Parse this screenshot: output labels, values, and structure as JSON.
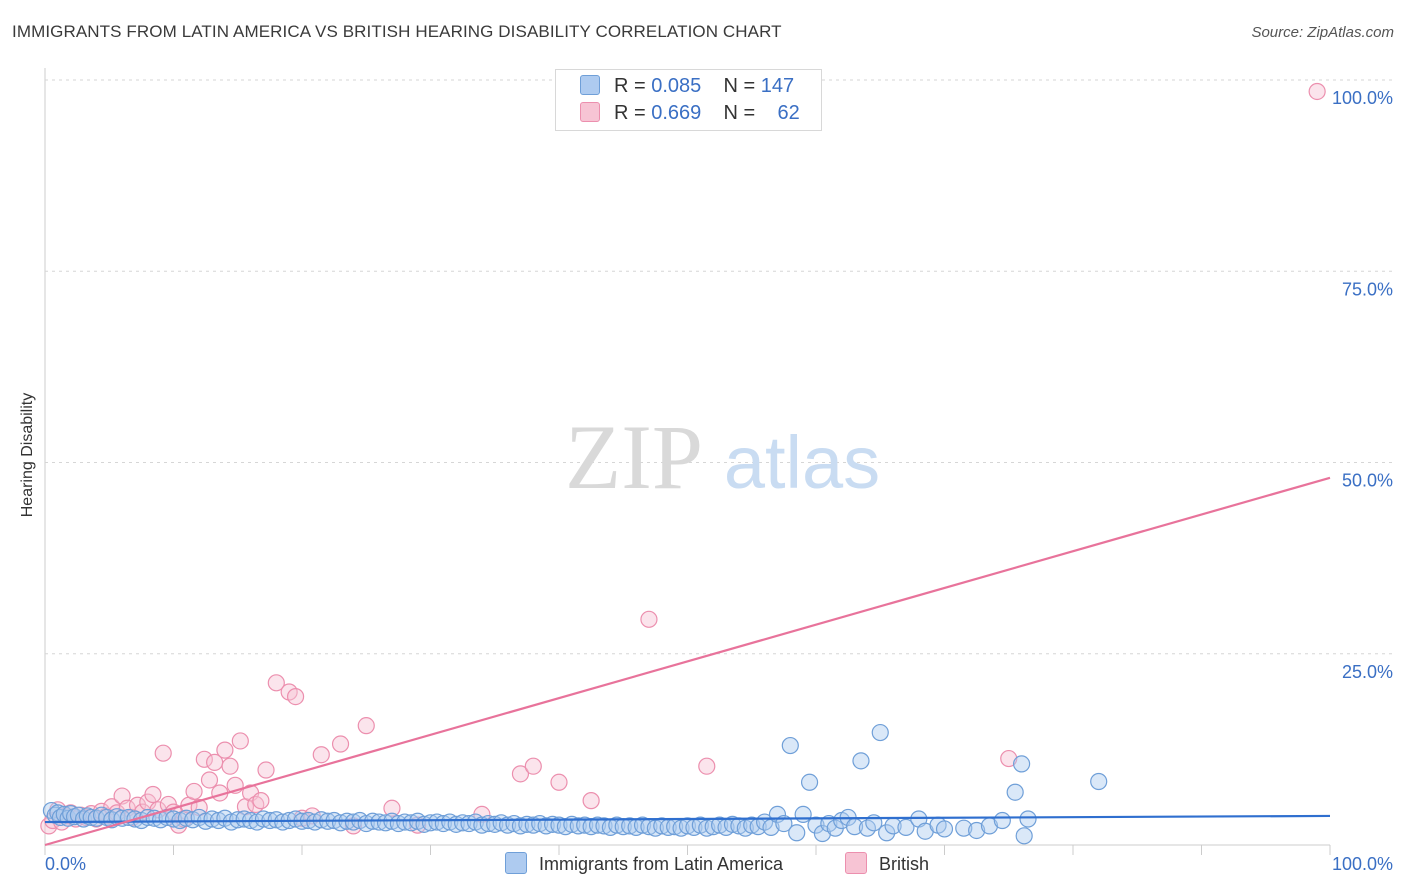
{
  "header": {
    "title": "IMMIGRANTS FROM LATIN AMERICA VS BRITISH HEARING DISABILITY CORRELATION CHART",
    "source": "Source: ZipAtlas.com"
  },
  "watermark": {
    "zip": "ZIP",
    "atlas": "atlas"
  },
  "legend_top": {
    "rows": [
      {
        "r_label": "R = ",
        "r_value": "0.085",
        "n_label": "N = ",
        "n_value": "147"
      },
      {
        "r_label": "R = ",
        "r_value": "0.669",
        "n_label": "N = ",
        "n_value": "62"
      }
    ]
  },
  "legend_bottom": {
    "items": [
      {
        "label": "Immigrants from Latin America"
      },
      {
        "label": "British"
      }
    ]
  },
  "colors": {
    "blue_fill": "#aecbf0",
    "blue_stroke": "#6f9fd8",
    "blue_line": "#2f6fcf",
    "pink_fill": "#f7c4d4",
    "pink_stroke": "#ec8fae",
    "pink_line": "#e8739b",
    "tick_text": "#3a6fc4",
    "grid": "#d6d6d6"
  },
  "chart_data": {
    "type": "scatter",
    "title": "IMMIGRANTS FROM LATIN AMERICA VS BRITISH HEARING DISABILITY CORRELATION CHART",
    "xlabel": "",
    "ylabel": "Hearing Disability",
    "xlim": [
      0,
      100
    ],
    "ylim": [
      0,
      100
    ],
    "x_tick_labels": [
      "0.0%",
      "100.0%"
    ],
    "y_ticks": [
      25,
      50,
      75,
      100
    ],
    "y_tick_labels": [
      "25.0%",
      "50.0%",
      "75.0%",
      "100.0%"
    ],
    "series": [
      {
        "name": "Immigrants from Latin America",
        "R": 0.085,
        "N": 147,
        "trend": {
          "x": [
            0,
            100
          ],
          "y": [
            3.0,
            3.8
          ]
        },
        "points": [
          [
            0.5,
            4.5
          ],
          [
            0.8,
            3.9
          ],
          [
            1.0,
            4.2
          ],
          [
            1.2,
            3.6
          ],
          [
            1.5,
            4.0
          ],
          [
            1.8,
            3.5
          ],
          [
            2.0,
            4.1
          ],
          [
            2.3,
            3.7
          ],
          [
            2.6,
            3.9
          ],
          [
            3.0,
            3.4
          ],
          [
            3.3,
            3.8
          ],
          [
            3.6,
            3.6
          ],
          [
            4.0,
            3.5
          ],
          [
            4.4,
            3.9
          ],
          [
            4.8,
            3.6
          ],
          [
            5.2,
            3.3
          ],
          [
            5.6,
            3.7
          ],
          [
            6.0,
            3.5
          ],
          [
            6.5,
            3.6
          ],
          [
            7.0,
            3.4
          ],
          [
            7.5,
            3.2
          ],
          [
            8.0,
            3.6
          ],
          [
            8.5,
            3.5
          ],
          [
            9.0,
            3.3
          ],
          [
            9.5,
            3.6
          ],
          [
            10.0,
            3.4
          ],
          [
            10.5,
            3.2
          ],
          [
            11.0,
            3.5
          ],
          [
            11.5,
            3.3
          ],
          [
            12.0,
            3.6
          ],
          [
            12.5,
            3.1
          ],
          [
            13.0,
            3.4
          ],
          [
            13.5,
            3.2
          ],
          [
            14.0,
            3.5
          ],
          [
            14.5,
            3.0
          ],
          [
            15.0,
            3.3
          ],
          [
            15.5,
            3.4
          ],
          [
            16.0,
            3.2
          ],
          [
            16.5,
            3.0
          ],
          [
            17.0,
            3.4
          ],
          [
            17.5,
            3.2
          ],
          [
            18.0,
            3.3
          ],
          [
            18.5,
            3.0
          ],
          [
            19.0,
            3.2
          ],
          [
            19.5,
            3.4
          ],
          [
            20.0,
            3.1
          ],
          [
            20.5,
            3.2
          ],
          [
            21.0,
            3.0
          ],
          [
            21.5,
            3.3
          ],
          [
            22.0,
            3.1
          ],
          [
            22.5,
            3.2
          ],
          [
            23.0,
            2.9
          ],
          [
            23.5,
            3.1
          ],
          [
            24.0,
            3.0
          ],
          [
            24.5,
            3.2
          ],
          [
            25.0,
            2.8
          ],
          [
            25.5,
            3.1
          ],
          [
            26.0,
            3.0
          ],
          [
            26.5,
            2.9
          ],
          [
            27.0,
            3.1
          ],
          [
            27.5,
            2.8
          ],
          [
            28.0,
            3.0
          ],
          [
            28.5,
            2.9
          ],
          [
            29.0,
            3.1
          ],
          [
            29.5,
            2.7
          ],
          [
            30.0,
            2.9
          ],
          [
            30.5,
            3.0
          ],
          [
            31.0,
            2.8
          ],
          [
            31.5,
            3.0
          ],
          [
            32.0,
            2.7
          ],
          [
            32.5,
            2.9
          ],
          [
            33.0,
            2.8
          ],
          [
            33.5,
            3.0
          ],
          [
            34.0,
            2.6
          ],
          [
            34.5,
            2.8
          ],
          [
            35.0,
            2.7
          ],
          [
            35.5,
            2.9
          ],
          [
            36.0,
            2.6
          ],
          [
            36.5,
            2.8
          ],
          [
            37.0,
            2.5
          ],
          [
            37.5,
            2.7
          ],
          [
            38.0,
            2.6
          ],
          [
            38.5,
            2.8
          ],
          [
            39.0,
            2.5
          ],
          [
            39.5,
            2.7
          ],
          [
            40.0,
            2.6
          ],
          [
            40.5,
            2.4
          ],
          [
            41.0,
            2.7
          ],
          [
            41.5,
            2.5
          ],
          [
            42.0,
            2.6
          ],
          [
            42.5,
            2.4
          ],
          [
            43.0,
            2.6
          ],
          [
            43.5,
            2.5
          ],
          [
            44.0,
            2.3
          ],
          [
            44.5,
            2.6
          ],
          [
            45.0,
            2.4
          ],
          [
            45.5,
            2.5
          ],
          [
            46.0,
            2.3
          ],
          [
            46.5,
            2.6
          ],
          [
            47.0,
            2.4
          ],
          [
            47.5,
            2.2
          ],
          [
            48.0,
            2.5
          ],
          [
            48.5,
            2.3
          ],
          [
            49.0,
            2.4
          ],
          [
            49.5,
            2.2
          ],
          [
            50.0,
            2.5
          ],
          [
            50.5,
            2.3
          ],
          [
            51.0,
            2.6
          ],
          [
            51.5,
            2.2
          ],
          [
            52.0,
            2.4
          ],
          [
            52.5,
            2.6
          ],
          [
            53.0,
            2.3
          ],
          [
            53.5,
            2.7
          ],
          [
            54.0,
            2.5
          ],
          [
            54.5,
            2.2
          ],
          [
            55.0,
            2.6
          ],
          [
            55.5,
            2.4
          ],
          [
            56.0,
            3.0
          ],
          [
            56.5,
            2.3
          ],
          [
            57.0,
            4.0
          ],
          [
            57.5,
            2.8
          ],
          [
            58.0,
            13.0
          ],
          [
            58.5,
            1.6
          ],
          [
            59.0,
            4.0
          ],
          [
            59.5,
            8.2
          ],
          [
            60.0,
            2.6
          ],
          [
            60.5,
            1.5
          ],
          [
            61.0,
            2.8
          ],
          [
            61.5,
            2.2
          ],
          [
            62.0,
            3.2
          ],
          [
            62.5,
            3.6
          ],
          [
            63.0,
            2.4
          ],
          [
            63.5,
            11.0
          ],
          [
            64.0,
            2.2
          ],
          [
            64.5,
            2.9
          ],
          [
            65.0,
            14.7
          ],
          [
            65.5,
            1.6
          ],
          [
            66.0,
            2.5
          ],
          [
            67.0,
            2.3
          ],
          [
            68.0,
            3.4
          ],
          [
            68.5,
            1.8
          ],
          [
            69.5,
            2.6
          ],
          [
            70.0,
            2.1
          ],
          [
            71.5,
            2.2
          ],
          [
            72.5,
            1.9
          ],
          [
            73.5,
            2.5
          ],
          [
            74.5,
            3.2
          ],
          [
            75.5,
            6.9
          ],
          [
            76.0,
            10.6
          ],
          [
            76.5,
            3.4
          ],
          [
            76.2,
            1.2
          ],
          [
            82.0,
            8.3
          ]
        ]
      },
      {
        "name": "British",
        "R": 0.669,
        "N": 62,
        "trend": {
          "x": [
            0,
            100
          ],
          "y": [
            0,
            48
          ]
        },
        "points": [
          [
            0.3,
            2.5
          ],
          [
            0.6,
            3.2
          ],
          [
            1.0,
            4.6
          ],
          [
            1.3,
            3.0
          ],
          [
            1.6,
            3.8
          ],
          [
            2.0,
            4.2
          ],
          [
            2.4,
            3.4
          ],
          [
            2.8,
            3.9
          ],
          [
            3.2,
            3.6
          ],
          [
            3.6,
            4.1
          ],
          [
            4.0,
            3.4
          ],
          [
            4.4,
            4.4
          ],
          [
            4.8,
            3.8
          ],
          [
            5.2,
            5.0
          ],
          [
            5.6,
            4.2
          ],
          [
            6.0,
            6.4
          ],
          [
            6.4,
            4.8
          ],
          [
            6.8,
            3.6
          ],
          [
            7.2,
            5.2
          ],
          [
            7.6,
            4.3
          ],
          [
            8.0,
            5.6
          ],
          [
            8.4,
            6.6
          ],
          [
            8.8,
            4.6
          ],
          [
            9.2,
            12.0
          ],
          [
            9.6,
            5.3
          ],
          [
            10.0,
            4.3
          ],
          [
            10.4,
            2.6
          ],
          [
            10.8,
            3.4
          ],
          [
            11.2,
            5.2
          ],
          [
            11.6,
            7.0
          ],
          [
            12.0,
            4.9
          ],
          [
            12.4,
            11.2
          ],
          [
            12.8,
            8.5
          ],
          [
            13.2,
            10.8
          ],
          [
            13.6,
            6.8
          ],
          [
            14.0,
            12.4
          ],
          [
            14.4,
            10.3
          ],
          [
            14.8,
            7.8
          ],
          [
            15.2,
            13.6
          ],
          [
            15.6,
            5.0
          ],
          [
            16.0,
            6.8
          ],
          [
            16.4,
            5.3
          ],
          [
            16.8,
            5.8
          ],
          [
            17.2,
            9.8
          ],
          [
            18.0,
            21.2
          ],
          [
            19.0,
            20.0
          ],
          [
            19.5,
            19.4
          ],
          [
            20.0,
            3.5
          ],
          [
            20.8,
            3.8
          ],
          [
            21.5,
            11.8
          ],
          [
            23.0,
            13.2
          ],
          [
            24.0,
            2.5
          ],
          [
            25.0,
            15.6
          ],
          [
            27.0,
            4.8
          ],
          [
            29.0,
            2.6
          ],
          [
            34.0,
            4.0
          ],
          [
            37.0,
            9.3
          ],
          [
            38.0,
            10.3
          ],
          [
            40.0,
            8.2
          ],
          [
            42.5,
            5.8
          ],
          [
            47.0,
            29.5
          ],
          [
            51.5,
            10.3
          ],
          [
            75.0,
            11.3
          ],
          [
            99.0,
            98.5
          ]
        ]
      }
    ]
  }
}
